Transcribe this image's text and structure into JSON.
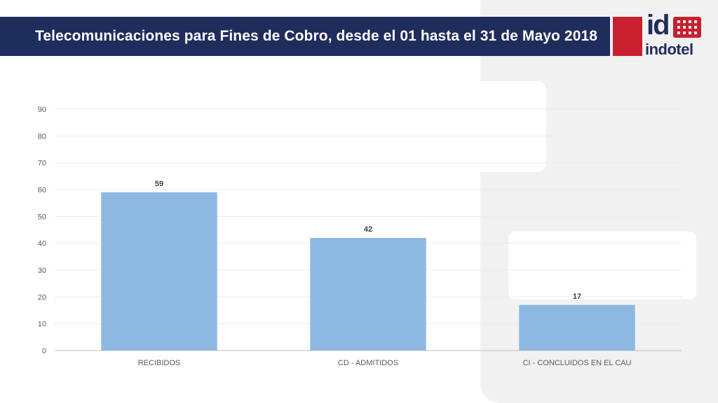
{
  "header": {
    "title": "Telecomunicaciones para Fines de Cobro, desde el 01 hasta el 31 de Mayo 2018"
  },
  "logo": {
    "mark": "id",
    "wordmark": "indotel",
    "icon": "dot-grid-icon"
  },
  "colors": {
    "header_bg": "#1f2d5c",
    "brand_red": "#c8202f",
    "bar": "#8db8e2"
  },
  "chart_data": {
    "type": "bar",
    "categories": [
      "RECIBIDOS",
      "CD - ADMITIDOS",
      "CI - CONCLUIDOS EN EL CAU"
    ],
    "values": [
      59,
      42,
      17
    ],
    "title": "",
    "xlabel": "",
    "ylabel": "",
    "ylim": [
      0,
      90
    ],
    "yticks": [
      0,
      10,
      20,
      30,
      40,
      50,
      60,
      70,
      80,
      90
    ],
    "data_labels": true,
    "grid": true,
    "legend": "none"
  }
}
